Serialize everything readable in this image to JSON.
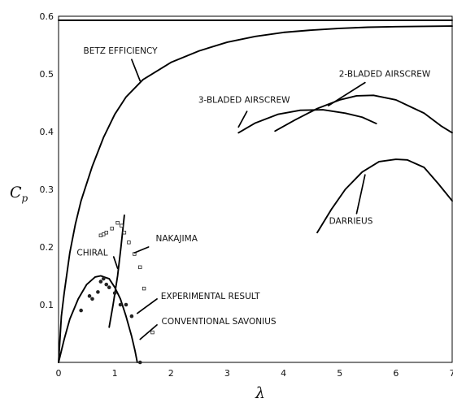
{
  "chart_data": {
    "type": "line",
    "title": "",
    "xlabel": "λ",
    "ylabel": "C",
    "ylabel_sub": "p",
    "xlim": [
      0,
      7
    ],
    "ylim": [
      0,
      0.6
    ],
    "x_ticks": [
      "0",
      "1",
      "2",
      "3",
      "4",
      "5",
      "6",
      "7"
    ],
    "y_ticks": [
      "0.1",
      "0.2",
      "0.3",
      "0.4",
      "0.5",
      "0.6"
    ],
    "y_tick_values": [
      0.1,
      0.2,
      0.3,
      0.4,
      0.5,
      0.6
    ],
    "grid": false,
    "legend": "none",
    "series": [
      {
        "name": "",
        "points": [
          [
            0,
            0
          ],
          [
            0.05,
            0.08
          ],
          [
            0.1,
            0.12
          ],
          [
            0.2,
            0.19
          ],
          [
            0.3,
            0.24
          ],
          [
            0.4,
            0.28
          ],
          [
            0.6,
            0.34
          ],
          [
            0.8,
            0.39
          ],
          [
            1.0,
            0.43
          ],
          [
            1.2,
            0.46
          ],
          [
            1.5,
            0.49
          ],
          [
            2.0,
            0.52
          ],
          [
            2.5,
            0.54
          ],
          [
            3.0,
            0.555
          ],
          [
            3.5,
            0.565
          ],
          [
            4.0,
            0.572
          ],
          [
            4.5,
            0.576
          ],
          [
            5.0,
            0.579
          ],
          [
            5.5,
            0.581
          ],
          [
            6.0,
            0.582
          ],
          [
            7.0,
            0.583
          ]
        ]
      },
      {
        "name": "",
        "points": [
          [
            0,
            0.593
          ],
          [
            7,
            0.593
          ]
        ]
      },
      {
        "name": "",
        "points": [
          [
            3.2,
            0.398
          ],
          [
            3.5,
            0.415
          ],
          [
            3.9,
            0.43
          ],
          [
            4.3,
            0.437
          ],
          [
            4.7,
            0.438
          ],
          [
            5.1,
            0.432
          ],
          [
            5.4,
            0.425
          ],
          [
            5.65,
            0.414
          ]
        ]
      },
      {
        "name": "",
        "points": [
          [
            3.85,
            0.401
          ],
          [
            4.2,
            0.42
          ],
          [
            4.6,
            0.44
          ],
          [
            5.0,
            0.455
          ],
          [
            5.3,
            0.462
          ],
          [
            5.6,
            0.463
          ],
          [
            6.0,
            0.455
          ],
          [
            6.5,
            0.432
          ],
          [
            6.8,
            0.41
          ],
          [
            7.0,
            0.398
          ]
        ]
      },
      {
        "name": "",
        "points": [
          [
            4.6,
            0.225
          ],
          [
            4.85,
            0.265
          ],
          [
            5.1,
            0.3
          ],
          [
            5.4,
            0.33
          ],
          [
            5.7,
            0.348
          ],
          [
            6.0,
            0.352
          ],
          [
            6.2,
            0.351
          ],
          [
            6.5,
            0.338
          ],
          [
            6.75,
            0.31
          ],
          [
            7.0,
            0.28
          ]
        ]
      },
      {
        "name": "",
        "points": [
          [
            0,
            0
          ],
          [
            0.1,
            0.04
          ],
          [
            0.2,
            0.075
          ],
          [
            0.35,
            0.11
          ],
          [
            0.5,
            0.135
          ],
          [
            0.65,
            0.148
          ],
          [
            0.75,
            0.15
          ],
          [
            0.9,
            0.145
          ],
          [
            1.0,
            0.13
          ],
          [
            1.1,
            0.11
          ],
          [
            1.2,
            0.08
          ],
          [
            1.3,
            0.045
          ],
          [
            1.36,
            0.02
          ],
          [
            1.4,
            0
          ]
        ]
      },
      {
        "name": "",
        "points": [
          [
            0.9,
            0.061
          ],
          [
            0.97,
            0.1
          ],
          [
            1.05,
            0.15
          ],
          [
            1.11,
            0.2
          ],
          [
            1.17,
            0.255
          ]
        ]
      }
    ],
    "experimental_circles": [
      [
        0.4,
        0.09
      ],
      [
        0.55,
        0.115
      ],
      [
        0.6,
        0.11
      ],
      [
        0.7,
        0.122
      ],
      [
        0.75,
        0.14
      ],
      [
        0.8,
        0.145
      ],
      [
        0.85,
        0.135
      ],
      [
        0.9,
        0.13
      ],
      [
        1.0,
        0.12
      ],
      [
        1.1,
        0.1
      ],
      [
        1.2,
        0.1
      ],
      [
        1.3,
        0.08
      ],
      [
        1.45,
        0
      ]
    ],
    "nakajima_squares": [
      [
        0.75,
        0.22
      ],
      [
        0.8,
        0.222
      ],
      [
        0.85,
        0.225
      ],
      [
        0.95,
        0.232
      ],
      [
        1.05,
        0.242
      ],
      [
        1.12,
        0.237
      ],
      [
        1.17,
        0.225
      ],
      [
        1.25,
        0.208
      ],
      [
        1.35,
        0.188
      ],
      [
        1.45,
        0.165
      ],
      [
        1.52,
        0.128
      ],
      [
        1.67,
        0.052
      ]
    ],
    "annotations": [
      {
        "text": "BETZ EFFICIENCY",
        "x": 1.1,
        "y": 0.535
      },
      {
        "text": "2-BLADED AIRSCREW",
        "x": 5.8,
        "y": 0.495
      },
      {
        "text": "3-BLADED AIRSCREW",
        "x": 3.3,
        "y": 0.45
      },
      {
        "text": "DARRIEUS",
        "x": 5.2,
        "y": 0.24
      },
      {
        "text": "NAKAJIMA",
        "x": 2.1,
        "y": 0.21
      },
      {
        "text": "CHIRAL",
        "x": 0.6,
        "y": 0.185
      },
      {
        "text": "EXPERIMENTAL RESULT",
        "x": 2.7,
        "y": 0.11
      },
      {
        "text": "CONVENTIONAL SAVONIUS",
        "x": 2.85,
        "y": 0.066
      }
    ],
    "leader_lines": [
      [
        [
          1.3,
          0.525
        ],
        [
          1.45,
          0.488
        ]
      ],
      [
        [
          5.45,
          0.485
        ],
        [
          4.8,
          0.445
        ]
      ],
      [
        [
          3.35,
          0.435
        ],
        [
          3.2,
          0.408
        ]
      ],
      [
        [
          5.3,
          0.258
        ],
        [
          5.45,
          0.325
        ]
      ],
      [
        [
          1.6,
          0.2
        ],
        [
          1.35,
          0.19
        ]
      ],
      [
        [
          0.98,
          0.183
        ],
        [
          1.05,
          0.163
        ]
      ],
      [
        [
          1.75,
          0.11
        ],
        [
          1.4,
          0.085
        ]
      ],
      [
        [
          1.75,
          0.065
        ],
        [
          1.45,
          0.04
        ]
      ]
    ]
  }
}
